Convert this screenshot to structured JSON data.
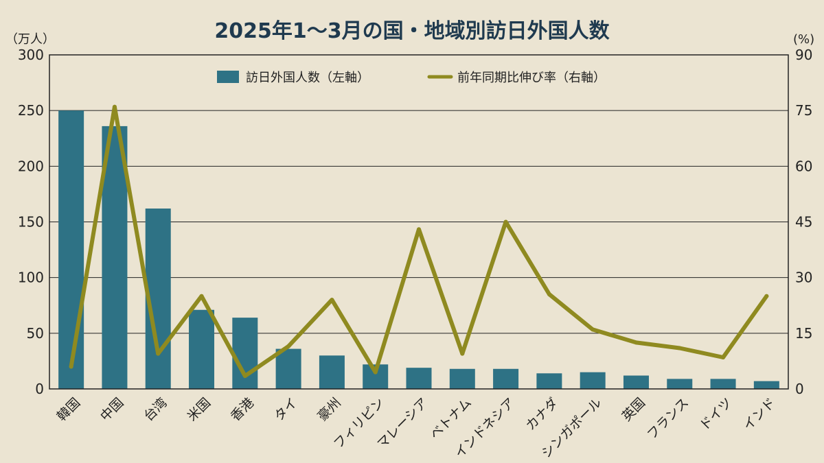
{
  "chart_data": {
    "type": "bar",
    "title": "2025年1〜3月の国・地域別訪日外国人数",
    "y_unit_left": "（万人）",
    "y_unit_right": "(%)",
    "ylim_left": [
      0,
      300
    ],
    "ylim_right": [
      0,
      90
    ],
    "yticks_left": [
      "0",
      "50",
      "100",
      "150",
      "200",
      "250",
      "300"
    ],
    "yticks_right": [
      "0",
      "15",
      "30",
      "45",
      "60",
      "75",
      "90"
    ],
    "grid": true,
    "legend_position": "top-center",
    "categories": [
      "韓国",
      "中国",
      "台湾",
      "米国",
      "香港",
      "タイ",
      "豪州",
      "フィリピン",
      "マレーシア",
      "ベトナム",
      "インドネシア",
      "カナダ",
      "シンガポール",
      "英国",
      "フランス",
      "ドイツ",
      "インド"
    ],
    "series": [
      {
        "name": "訪日外国人数（左軸）",
        "type": "bar",
        "axis": "left",
        "color": "#2e7285",
        "values": [
          250,
          236,
          162,
          71,
          64,
          36,
          30,
          22,
          19,
          18,
          18,
          14,
          15,
          12,
          9,
          9,
          7
        ]
      },
      {
        "name": "前年同期比伸び率（右軸）",
        "type": "line",
        "axis": "right",
        "color": "#8f8a20",
        "values": [
          6,
          76,
          9.5,
          25,
          3.5,
          11.5,
          24,
          4.5,
          43,
          9.5,
          45,
          25.5,
          16,
          12.5,
          11,
          8.5,
          25
        ]
      }
    ]
  }
}
